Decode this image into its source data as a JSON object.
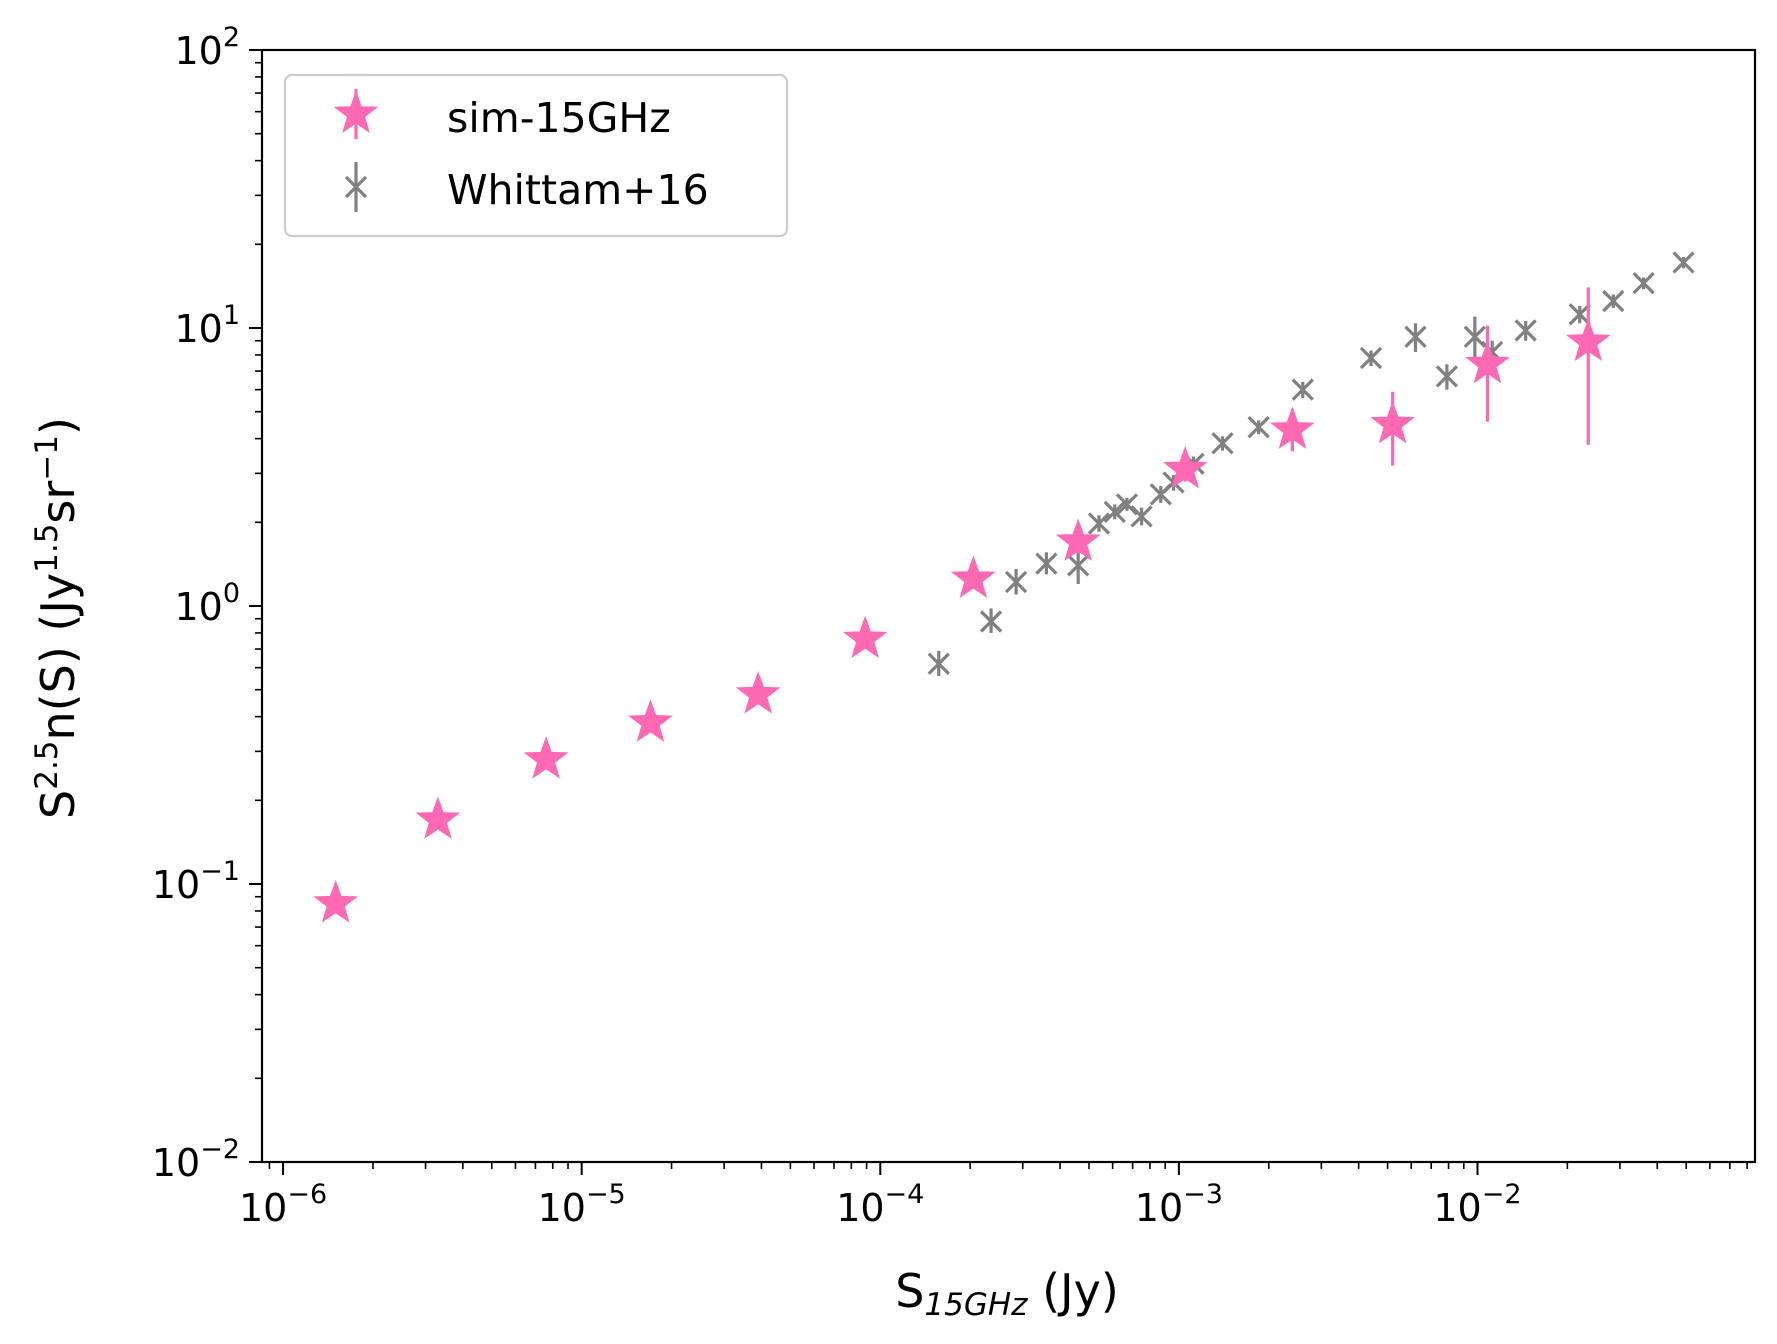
{
  "chart_data": {
    "type": "scatter",
    "title": "",
    "xlabel": "S_15GHz (Jy)",
    "xlabel_parts": {
      "base": "S",
      "sub": "15GHz",
      "unit": " (Jy)"
    },
    "ylabel": "S^2.5 n(S) (Jy^1.5 sr^-1)",
    "ylabel_parts": {
      "b1": "S",
      "s1": "2.5",
      "b2": "n(S) (Jy",
      "s2": "1.5",
      "b3": "sr",
      "s3": "−1",
      "b4": ")"
    },
    "xscale": "log",
    "yscale": "log",
    "xlim": [
      8.5e-07,
      0.085
    ],
    "ylim": [
      0.01,
      100
    ],
    "grid": false,
    "legend_position": "upper left",
    "x_ticks": [
      {
        "value": 1e-06,
        "base": "10",
        "exp": "−6"
      },
      {
        "value": 1e-05,
        "base": "10",
        "exp": "−5"
      },
      {
        "value": 0.0001,
        "base": "10",
        "exp": "−4"
      },
      {
        "value": 0.001,
        "base": "10",
        "exp": "−3"
      },
      {
        "value": 0.01,
        "base": "10",
        "exp": "−2"
      }
    ],
    "y_ticks": [
      {
        "value": 0.01,
        "base": "10",
        "exp": "−2"
      },
      {
        "value": 0.1,
        "base": "10",
        "exp": "−1"
      },
      {
        "value": 1,
        "base": "10",
        "exp": "0"
      },
      {
        "value": 10,
        "base": "10",
        "exp": "1"
      },
      {
        "value": 100,
        "base": "10",
        "exp": "2"
      }
    ],
    "series": [
      {
        "name": "sim-15GHz",
        "label": "sim-15GHz",
        "marker": "star",
        "color": "#ff69b4",
        "points": [
          {
            "x": 1.5e-06,
            "y": 0.085,
            "ylo": 0.085,
            "yhi": 0.085
          },
          {
            "x": 3.3e-06,
            "y": 0.17,
            "ylo": 0.17,
            "yhi": 0.17
          },
          {
            "x": 7.6e-06,
            "y": 0.28,
            "ylo": 0.28,
            "yhi": 0.28
          },
          {
            "x": 1.7e-05,
            "y": 0.38,
            "ylo": 0.38,
            "yhi": 0.38
          },
          {
            "x": 3.9e-05,
            "y": 0.48,
            "ylo": 0.48,
            "yhi": 0.48
          },
          {
            "x": 8.9e-05,
            "y": 0.76,
            "ylo": 0.76,
            "yhi": 0.76
          },
          {
            "x": 0.000205,
            "y": 1.25,
            "ylo": 1.18,
            "yhi": 1.32
          },
          {
            "x": 0.00046,
            "y": 1.7,
            "ylo": 1.55,
            "yhi": 1.88
          },
          {
            "x": 0.00105,
            "y": 3.1,
            "ylo": 2.8,
            "yhi": 3.4
          },
          {
            "x": 0.0024,
            "y": 4.3,
            "ylo": 3.6,
            "yhi": 5.1
          },
          {
            "x": 0.0052,
            "y": 4.5,
            "ylo": 3.2,
            "yhi": 5.9
          },
          {
            "x": 0.0108,
            "y": 7.4,
            "ylo": 4.6,
            "yhi": 10.2
          },
          {
            "x": 0.0235,
            "y": 8.9,
            "ylo": 3.8,
            "yhi": 14.0
          }
        ]
      },
      {
        "name": "Whittam+16",
        "label": "Whittam+16",
        "marker": "x",
        "color": "#808080",
        "points": [
          {
            "x": 0.000157,
            "y": 0.62,
            "ylo": 0.56,
            "yhi": 0.69
          },
          {
            "x": 0.000235,
            "y": 0.88,
            "ylo": 0.8,
            "yhi": 0.98
          },
          {
            "x": 0.000285,
            "y": 1.22,
            "ylo": 1.1,
            "yhi": 1.36
          },
          {
            "x": 0.00036,
            "y": 1.42,
            "ylo": 1.3,
            "yhi": 1.56
          },
          {
            "x": 0.00046,
            "y": 1.4,
            "ylo": 1.2,
            "yhi": 1.62
          },
          {
            "x": 0.00054,
            "y": 1.98,
            "ylo": 1.85,
            "yhi": 2.12
          },
          {
            "x": 0.00061,
            "y": 2.18,
            "ylo": 2.05,
            "yhi": 2.32
          },
          {
            "x": 0.00067,
            "y": 2.32,
            "ylo": 2.2,
            "yhi": 2.45
          },
          {
            "x": 0.00075,
            "y": 2.1,
            "ylo": 1.95,
            "yhi": 2.26
          },
          {
            "x": 0.00087,
            "y": 2.52,
            "ylo": 2.35,
            "yhi": 2.7
          },
          {
            "x": 0.00096,
            "y": 2.78,
            "ylo": 2.6,
            "yhi": 2.96
          },
          {
            "x": 0.00112,
            "y": 3.25,
            "ylo": 3.05,
            "yhi": 3.45
          },
          {
            "x": 0.0014,
            "y": 3.85,
            "ylo": 3.62,
            "yhi": 4.08
          },
          {
            "x": 0.00185,
            "y": 4.4,
            "ylo": 4.15,
            "yhi": 4.65
          },
          {
            "x": 0.0026,
            "y": 6.0,
            "ylo": 5.6,
            "yhi": 6.4
          },
          {
            "x": 0.0044,
            "y": 7.8,
            "ylo": 7.3,
            "yhi": 8.3
          },
          {
            "x": 0.0062,
            "y": 9.3,
            "ylo": 8.2,
            "yhi": 10.4
          },
          {
            "x": 0.0079,
            "y": 6.7,
            "ylo": 6.0,
            "yhi": 7.4
          },
          {
            "x": 0.0098,
            "y": 9.3,
            "ylo": 7.6,
            "yhi": 11.0
          },
          {
            "x": 0.0112,
            "y": 8.2,
            "ylo": 7.4,
            "yhi": 9.0
          },
          {
            "x": 0.0145,
            "y": 9.8,
            "ylo": 9.0,
            "yhi": 10.6
          },
          {
            "x": 0.022,
            "y": 11.2,
            "ylo": 10.4,
            "yhi": 12.0
          },
          {
            "x": 0.0285,
            "y": 12.5,
            "ylo": 11.8,
            "yhi": 13.2
          },
          {
            "x": 0.036,
            "y": 14.5,
            "ylo": 13.8,
            "yhi": 15.2
          },
          {
            "x": 0.049,
            "y": 17.2,
            "ylo": 16.4,
            "yhi": 18.0
          }
        ]
      }
    ]
  }
}
